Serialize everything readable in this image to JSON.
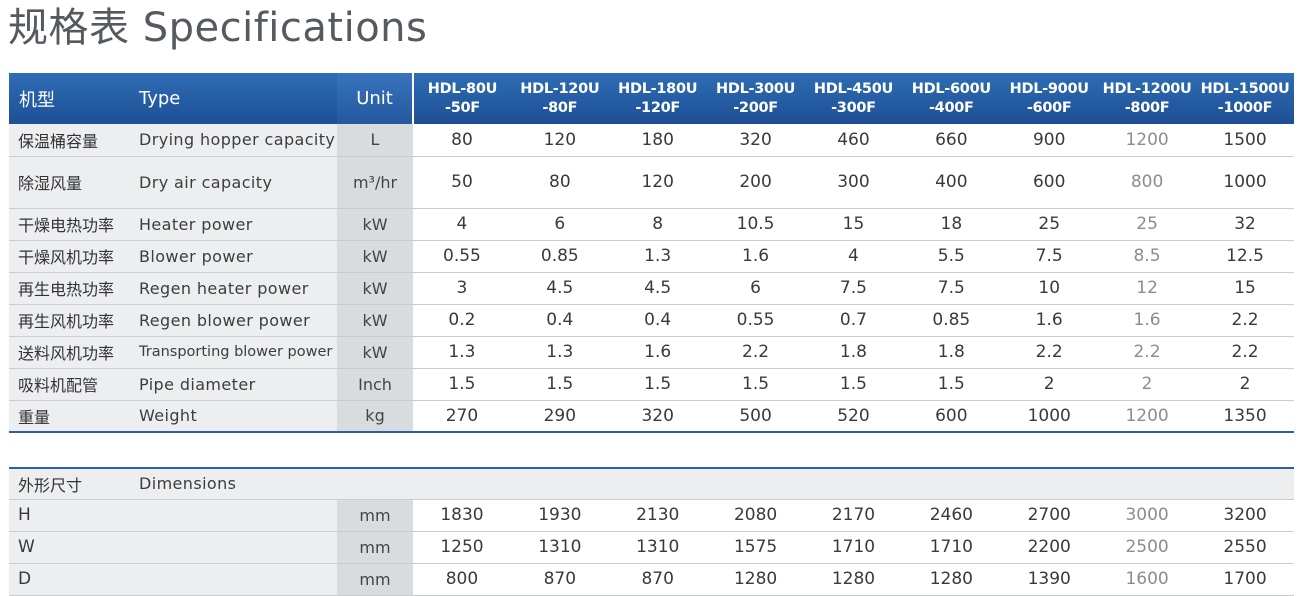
{
  "title": "规格表 Specifications",
  "header": {
    "cn_label": "机型",
    "en_label": "Type",
    "unit_label": "Unit",
    "models": [
      {
        "line1": "HDL-80U",
        "line2": "-50F"
      },
      {
        "line1": "HDL-120U",
        "line2": "-80F"
      },
      {
        "line1": "HDL-180U",
        "line2": "-120F"
      },
      {
        "line1": "HDL-300U",
        "line2": "-200F"
      },
      {
        "line1": "HDL-450U",
        "line2": "-300F"
      },
      {
        "line1": "HDL-600U",
        "line2": "-400F"
      },
      {
        "line1": "HDL-900U",
        "line2": "-600F"
      },
      {
        "line1": "HDL-1200U",
        "line2": "-800F"
      },
      {
        "line1": "HDL-1500U",
        "line2": "-1000F"
      }
    ]
  },
  "spec_rows": [
    {
      "cn": "保温桶容量",
      "en": "Drying hopper capacity",
      "unit": "L",
      "values": [
        "80",
        "120",
        "180",
        "320",
        "460",
        "660",
        "900",
        "1200",
        "1500"
      ]
    },
    {
      "cn": "除湿风量",
      "en": "Dry air capacity",
      "unit": "m³/hr",
      "values": [
        "50",
        "80",
        "120",
        "200",
        "300",
        "400",
        "600",
        "800",
        "1000"
      ]
    },
    {
      "cn": "干燥电热功率",
      "en": "Heater power",
      "unit": "kW",
      "values": [
        "4",
        "6",
        "8",
        "10.5",
        "15",
        "18",
        "25",
        "25",
        "32"
      ]
    },
    {
      "cn": "干燥风机功率",
      "en": "Blower power",
      "unit": "kW",
      "values": [
        "0.55",
        "0.85",
        "1.3",
        "1.6",
        "4",
        "5.5",
        "7.5",
        "8.5",
        "12.5"
      ]
    },
    {
      "cn": "再生电热功率",
      "en": "Regen heater power",
      "unit": "kW",
      "values": [
        "3",
        "4.5",
        "4.5",
        "6",
        "7.5",
        "7.5",
        "10",
        "12",
        "15"
      ]
    },
    {
      "cn": "再生风机功率",
      "en": "Regen blower power",
      "unit": "kW",
      "values": [
        "0.2",
        "0.4",
        "0.4",
        "0.55",
        "0.7",
        "0.85",
        "1.6",
        "1.6",
        "2.2"
      ]
    },
    {
      "cn": "送料风机功率",
      "en": "Transporting blower power",
      "unit": "kW",
      "values": [
        "1.3",
        "1.3",
        "1.6",
        "2.2",
        "1.8",
        "1.8",
        "2.2",
        "2.2",
        "2.2"
      ]
    },
    {
      "cn": "吸料机配管",
      "en": "Pipe diameter",
      "unit": "Inch",
      "values": [
        "1.5",
        "1.5",
        "1.5",
        "1.5",
        "1.5",
        "1.5",
        "2",
        "2",
        "2"
      ]
    },
    {
      "cn": "重量",
      "en": "Weight",
      "unit": "kg",
      "values": [
        "270",
        "290",
        "320",
        "500",
        "520",
        "600",
        "1000",
        "1200",
        "1350"
      ]
    }
  ],
  "dimensions": {
    "cn": "外形尺寸",
    "en": "Dimensions",
    "rows": [
      {
        "label": "H",
        "unit": "mm",
        "values": [
          "1830",
          "1930",
          "2130",
          "2080",
          "2170",
          "2460",
          "2700",
          "3000",
          "3200"
        ]
      },
      {
        "label": "W",
        "unit": "mm",
        "values": [
          "1250",
          "1310",
          "1310",
          "1575",
          "1710",
          "1710",
          "2200",
          "2500",
          "2550"
        ]
      },
      {
        "label": "D",
        "unit": "mm",
        "values": [
          "800",
          "870",
          "870",
          "1280",
          "1280",
          "1280",
          "1390",
          "1600",
          "1700"
        ]
      }
    ]
  }
}
